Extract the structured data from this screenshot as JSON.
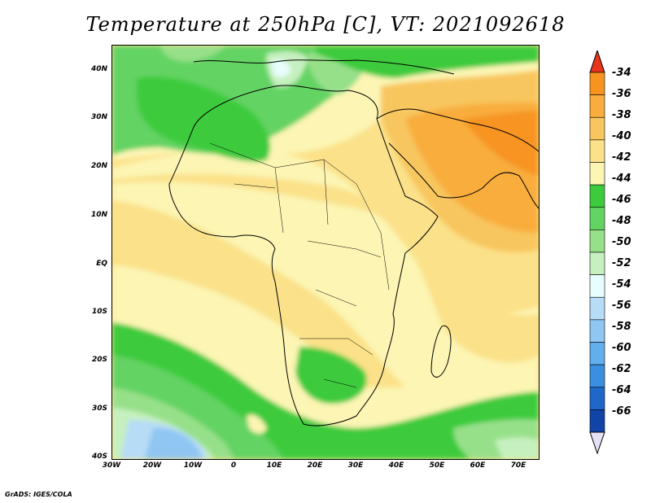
{
  "title": "Temperature at 250hPa [C], VT: 2021092618",
  "footer": "GrADS: IGES/COLA",
  "map": {
    "y_labels": [
      "40N",
      "30N",
      "20N",
      "10N",
      "EQ",
      "10S",
      "20S",
      "30S",
      "40S"
    ],
    "x_labels": [
      "30W",
      "20W",
      "10W",
      "0",
      "10E",
      "20E",
      "30E",
      "40E",
      "50E",
      "60E",
      "70E"
    ],
    "lat_range": [
      -40,
      45
    ],
    "lon_range": [
      -30,
      75
    ]
  },
  "colorbar": {
    "levels": [
      "-34",
      "-36",
      "-38",
      "-40",
      "-42",
      "-44",
      "-46",
      "-48",
      "-50",
      "-52",
      "-54",
      "-56",
      "-58",
      "-60",
      "-62",
      "-64",
      "-66"
    ],
    "colors": [
      "#f26b1b",
      "#f79420",
      "#f8ad3c",
      "#f8c65e",
      "#fbe189",
      "#fcf5b3",
      "#3ccb3c",
      "#63d363",
      "#97e08a",
      "#c6f0bf",
      "#e8fdfd",
      "#b7dcf6",
      "#8fc6f2",
      "#63aeec",
      "#3a8fe0",
      "#1f67c8",
      "#1244a8",
      "#0a1f78"
    ],
    "top_arrow_color": "#e8341c",
    "bottom_arrow_color": "#e6e0f5"
  }
}
